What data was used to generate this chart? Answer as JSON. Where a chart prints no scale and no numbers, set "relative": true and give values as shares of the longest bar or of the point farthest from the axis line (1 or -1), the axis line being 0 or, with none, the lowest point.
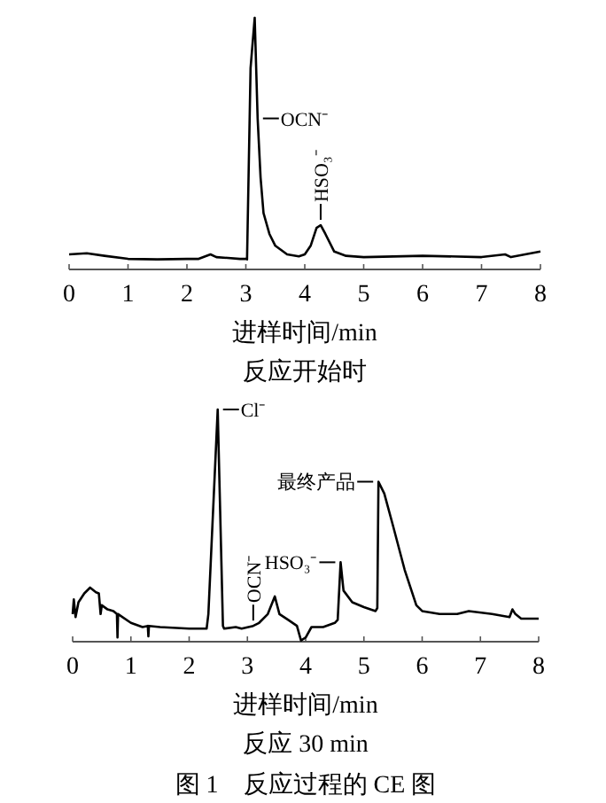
{
  "chart_data": [
    {
      "type": "line",
      "relative": true,
      "color": "#000000",
      "xlim": [
        0,
        8
      ],
      "xticks": [
        0,
        1,
        2,
        3,
        4,
        5,
        6,
        7,
        8
      ],
      "xlabel": "进样时间/min",
      "title": "反应开始时",
      "x": [
        0,
        0.3,
        0.6,
        1.0,
        1.5,
        2.0,
        2.2,
        2.4,
        2.5,
        2.9,
        3.0,
        3.02,
        3.08,
        3.15,
        3.2,
        3.25,
        3.3,
        3.4,
        3.5,
        3.7,
        3.9,
        4.0,
        4.1,
        4.2,
        4.27,
        4.35,
        4.5,
        4.7,
        5.0,
        6.0,
        7.0,
        7.4,
        7.5,
        8.0
      ],
      "values": [
        0.06,
        0.064,
        0.054,
        0.042,
        0.04,
        0.042,
        0.042,
        0.06,
        0.049,
        0.042,
        0.042,
        0.04,
        0.8,
        1,
        0.6,
        0.365,
        0.224,
        0.141,
        0.094,
        0.06,
        0.052,
        0.06,
        0.094,
        0.165,
        0.176,
        0.141,
        0.071,
        0.054,
        0.049,
        0.054,
        0.049,
        0.06,
        0.049,
        0.071
      ],
      "annotations": [
        {
          "text": "OCN⁻",
          "x": 3.2,
          "y": 0.6
        },
        {
          "text": "HSO₃⁻",
          "x": 4.27,
          "y": 0.176
        }
      ]
    },
    {
      "type": "line",
      "relative": true,
      "color": "#000000",
      "xlim": [
        0,
        8
      ],
      "xticks": [
        0,
        1,
        2,
        3,
        4,
        5,
        6,
        7,
        8
      ],
      "xlabel": "进样时间/min",
      "title": "反应 30 min",
      "x": [
        0,
        0.02,
        0.05,
        0.1,
        0.2,
        0.3,
        0.4,
        0.45,
        0.48,
        0.5,
        0.6,
        0.7,
        0.76,
        0.77,
        0.78,
        1.0,
        1.2,
        1.29,
        1.3,
        1.31,
        1.5,
        2.0,
        2.3,
        2.33,
        2.49,
        2.58,
        2.6,
        2.8,
        2.9,
        3.1,
        3.2,
        3.35,
        3.47,
        3.55,
        3.7,
        3.85,
        3.92,
        4.0,
        4.1,
        4.3,
        4.5,
        4.55,
        4.6,
        4.65,
        4.8,
        5.0,
        5.2,
        5.23,
        5.25,
        5.35,
        5.5,
        5.7,
        5.9,
        6.0,
        6.3,
        6.6,
        6.8,
        7.2,
        7.5,
        7.55,
        7.6,
        7.7,
        8.0
      ],
      "values": [
        0.119,
        0.182,
        0.106,
        0.17,
        0.208,
        0.233,
        0.213,
        0.208,
        0.119,
        0.157,
        0.139,
        0.132,
        0.119,
        0.018,
        0.119,
        0.081,
        0.063,
        0.068,
        0.023,
        0.068,
        0.063,
        0.056,
        0.056,
        0.119,
        1,
        0.068,
        0.056,
        0.063,
        0.056,
        0.068,
        0.081,
        0.119,
        0.195,
        0.119,
        0.094,
        0.068,
        0.005,
        0.018,
        0.063,
        0.063,
        0.081,
        0.094,
        0.342,
        0.22,
        0.17,
        0.149,
        0.132,
        0.145,
        0.689,
        0.638,
        0.499,
        0.309,
        0.157,
        0.132,
        0.119,
        0.119,
        0.132,
        0.119,
        0.106,
        0.139,
        0.119,
        0.099,
        0.099
      ],
      "annotations": [
        {
          "text": "Cl⁻",
          "x": 2.49,
          "y": 1
        },
        {
          "text": "OCN⁻",
          "x": 3.1,
          "y": 0.068
        },
        {
          "text": "HSO₃⁻",
          "x": 4.6,
          "y": 0.342
        },
        {
          "text": "最终产品",
          "x": 5.25,
          "y": 0.689
        },
        "图 1　反应过程的 CE 图"
      ]
    }
  ]
}
